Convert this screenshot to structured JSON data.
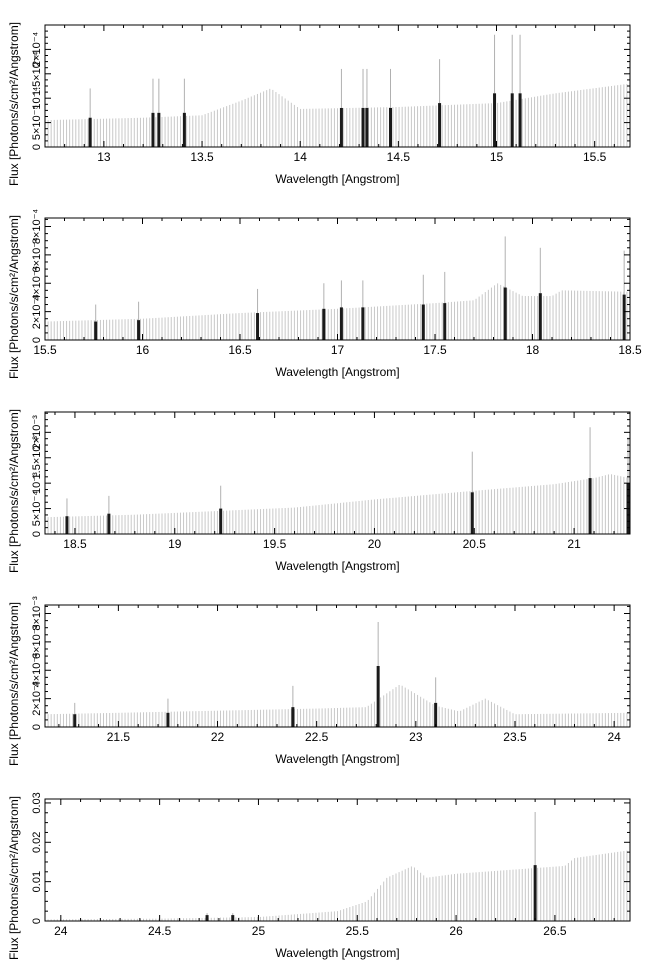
{
  "chart_data": [
    {
      "type": "bar",
      "panel": 1,
      "xlabel": "Wavelength [Angstrom]",
      "ylabel": "Flux [Photons/s/cm²/Angstrom]",
      "xlim": [
        12.7,
        15.68
      ],
      "ylim": [
        0,
        0.00025
      ],
      "x_ticks": [
        13,
        13.5,
        14,
        14.5,
        15,
        15.5
      ],
      "y_ticks": [
        0,
        5e-05,
        0.0001,
        0.00015,
        0.0002
      ],
      "y_tick_labels": [
        "0",
        "5×10⁻⁵",
        "10⁻⁴",
        "1.5×10⁻⁴",
        "2×10⁻⁴"
      ],
      "continuum": {
        "x": [
          12.7,
          13.2,
          13.5,
          13.7,
          13.85,
          14.0,
          14.5,
          15.0,
          15.3,
          15.68
        ],
        "y": [
          5.5e-05,
          6e-05,
          6.5e-05,
          9.5e-05,
          0.00012,
          7.8e-05,
          8.2e-05,
          9e-05,
          0.00011,
          0.00013
        ]
      },
      "lines": [
        {
          "x": 12.93,
          "y": 6e-05,
          "err": 6e-05
        },
        {
          "x": 13.25,
          "y": 7e-05,
          "err": 7e-05
        },
        {
          "x": 13.28,
          "y": 7e-05,
          "err": 7e-05
        },
        {
          "x": 13.41,
          "y": 7e-05,
          "err": 7e-05
        },
        {
          "x": 14.21,
          "y": 8e-05,
          "err": 8e-05
        },
        {
          "x": 14.32,
          "y": 8e-05,
          "err": 8e-05
        },
        {
          "x": 14.34,
          "y": 8e-05,
          "err": 8e-05
        },
        {
          "x": 14.46,
          "y": 8e-05,
          "err": 8e-05
        },
        {
          "x": 14.71,
          "y": 9e-05,
          "err": 9e-05
        },
        {
          "x": 14.99,
          "y": 0.00011,
          "err": 0.00012
        },
        {
          "x": 15.08,
          "y": 0.00011,
          "err": 0.00012
        },
        {
          "x": 15.12,
          "y": 0.00011,
          "err": 0.00012
        }
      ]
    },
    {
      "type": "bar",
      "panel": 2,
      "xlabel": "Wavelength [Angstrom]",
      "ylabel": "Flux [Photons/s/cm²/Angstrom]",
      "xlim": [
        15.5,
        18.5
      ],
      "ylim": [
        0,
        0.00086
      ],
      "x_ticks": [
        15.5,
        16,
        16.5,
        17,
        17.5,
        18,
        18.5
      ],
      "y_ticks": [
        0,
        0.0002,
        0.0004,
        0.0006,
        0.0008
      ],
      "y_tick_labels": [
        "0",
        "2×10⁻⁴",
        "4×10⁻⁴",
        "6×10⁻⁴",
        "8×10⁻⁴"
      ],
      "continuum": {
        "x": [
          15.5,
          16.0,
          16.5,
          17.0,
          17.5,
          17.7,
          17.82,
          17.95,
          18.1,
          18.15,
          18.5
        ],
        "y": [
          0.00013,
          0.00015,
          0.00019,
          0.00022,
          0.00026,
          0.00028,
          0.0004,
          0.00031,
          0.00031,
          0.00035,
          0.00034
        ]
      },
      "lines": [
        {
          "x": 15.76,
          "y": 0.00013,
          "err": 0.00012
        },
        {
          "x": 15.98,
          "y": 0.00014,
          "err": 0.00013
        },
        {
          "x": 16.59,
          "y": 0.00019,
          "err": 0.00017
        },
        {
          "x": 16.93,
          "y": 0.00022,
          "err": 0.00018
        },
        {
          "x": 17.02,
          "y": 0.00023,
          "err": 0.00019
        },
        {
          "x": 17.13,
          "y": 0.00023,
          "err": 0.00019
        },
        {
          "x": 17.44,
          "y": 0.00025,
          "err": 0.00021
        },
        {
          "x": 17.55,
          "y": 0.00026,
          "err": 0.00022
        },
        {
          "x": 17.86,
          "y": 0.00037,
          "err": 0.00036
        },
        {
          "x": 18.04,
          "y": 0.00033,
          "err": 0.00032
        },
        {
          "x": 18.47,
          "y": 0.00032,
          "err": 0.00031
        }
      ]
    },
    {
      "type": "bar",
      "panel": 3,
      "xlabel": "Wavelength [Angstrom]",
      "ylabel": "Flux [Photons/s/cm²/Angstrom]",
      "xlim": [
        18.35,
        21.28
      ],
      "ylim": [
        0,
        0.0024
      ],
      "x_ticks": [
        18.5,
        19,
        19.5,
        20,
        20.5,
        21
      ],
      "y_ticks": [
        0,
        0.0005,
        0.001,
        0.0015,
        0.002
      ],
      "y_tick_labels": [
        "0",
        "5×10⁻⁴",
        "10⁻³",
        "1.5×10⁻³",
        "2×10⁻³"
      ],
      "continuum": {
        "x": [
          18.35,
          18.8,
          19.2,
          19.6,
          20.0,
          20.5,
          20.9,
          21.1,
          21.18,
          21.28
        ],
        "y": [
          0.00033,
          0.00038,
          0.00045,
          0.00052,
          0.00068,
          0.00085,
          0.00098,
          0.0011,
          0.00118,
          0.0011
        ]
      },
      "lines": [
        {
          "x": 18.46,
          "y": 0.00035,
          "err": 0.00035
        },
        {
          "x": 18.67,
          "y": 0.0004,
          "err": 0.00035
        },
        {
          "x": 19.23,
          "y": 0.0005,
          "err": 0.00045
        },
        {
          "x": 20.49,
          "y": 0.00082,
          "err": 0.0008
        },
        {
          "x": 21.08,
          "y": 0.0011,
          "err": 0.001
        },
        {
          "x": 21.27,
          "y": 0.001,
          "err": 0.0009
        }
      ]
    },
    {
      "type": "bar",
      "panel": 4,
      "xlabel": "Wavelength [Angstrom]",
      "ylabel": "Flux [Photons/s/cm²/Angstrom]",
      "xlim": [
        21.13,
        24.08
      ],
      "ylim": [
        0,
        0.0086
      ],
      "x_ticks": [
        21.5,
        22,
        22.5,
        23,
        23.5,
        24
      ],
      "y_ticks": [
        0,
        0.002,
        0.004,
        0.006,
        0.008
      ],
      "y_tick_labels": [
        "0",
        "2×10⁻³",
        "4×10⁻³",
        "6×10⁻³",
        "8×10⁻³"
      ],
      "continuum": {
        "x": [
          21.13,
          21.5,
          22.0,
          22.5,
          22.75,
          22.92,
          23.1,
          23.22,
          23.35,
          23.5,
          24.08
        ],
        "y": [
          0.0009,
          0.001,
          0.00115,
          0.0013,
          0.0014,
          0.003,
          0.0015,
          0.0011,
          0.002,
          0.0009,
          0.001
        ]
      },
      "lines": [
        {
          "x": 21.28,
          "y": 0.0009,
          "err": 0.0008
        },
        {
          "x": 21.75,
          "y": 0.001,
          "err": 0.001
        },
        {
          "x": 22.38,
          "y": 0.0014,
          "err": 0.0015
        },
        {
          "x": 22.81,
          "y": 0.0043,
          "err": 0.0031
        },
        {
          "x": 23.1,
          "y": 0.0017,
          "err": 0.0018
        }
      ]
    },
    {
      "type": "bar",
      "panel": 5,
      "xlabel": "Wavelength [Angstrom]",
      "ylabel": "Flux [Photons/s/cm²/Angstrom]",
      "xlim": [
        23.92,
        26.88
      ],
      "ylim": [
        0,
        0.031
      ],
      "x_ticks": [
        24,
        24.5,
        25,
        25.5,
        26,
        26.5
      ],
      "y_ticks": [
        0,
        0.01,
        0.02,
        0.03
      ],
      "y_tick_labels": [
        "0",
        "0.01",
        "0.02",
        "0.03"
      ],
      "continuum": {
        "x": [
          23.92,
          24.5,
          25.0,
          25.4,
          25.55,
          25.65,
          25.78,
          25.85,
          26.0,
          26.55,
          26.6,
          26.88
        ],
        "y": [
          0.0004,
          0.0006,
          0.001,
          0.0025,
          0.005,
          0.011,
          0.014,
          0.011,
          0.012,
          0.014,
          0.016,
          0.018
        ]
      },
      "lines": [
        {
          "x": 24.74,
          "y": 0.0015,
          "err": 0.0005
        },
        {
          "x": 24.87,
          "y": 0.0015,
          "err": 0.0005
        },
        {
          "x": 26.4,
          "y": 0.0142,
          "err": 0.0135
        }
      ]
    }
  ]
}
